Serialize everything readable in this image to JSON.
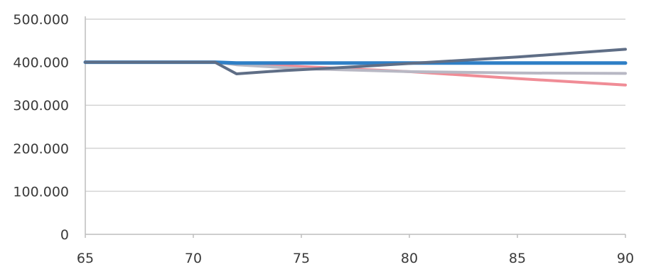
{
  "chart_data": {
    "type": "line",
    "title": "",
    "xlabel": "",
    "ylabel": "",
    "xlim": [
      65,
      90
    ],
    "ylim": [
      0,
      500
    ],
    "x_ticks": [
      65,
      70,
      75,
      80,
      85,
      90
    ],
    "x_tick_labels": [
      "65",
      "70",
      "75",
      "80",
      "85",
      "90"
    ],
    "y_ticks": [
      0,
      100,
      200,
      300,
      400,
      500
    ],
    "y_tick_labels": [
      "0",
      "100.000",
      "200.000",
      "300.000",
      "400.000",
      "500.000"
    ],
    "grid": "horizontal",
    "legend": "none",
    "series": [
      {
        "color": "#f08c96",
        "stroke": 4,
        "points": [
          [
            65,
            400
          ],
          [
            67,
            400
          ],
          [
            71,
            400
          ],
          [
            72,
            398
          ],
          [
            75,
            390
          ],
          [
            80,
            378
          ],
          [
            85,
            362
          ],
          [
            90,
            347
          ]
        ]
      },
      {
        "color": "#b8b8c4",
        "stroke": 4,
        "points": [
          [
            65,
            400
          ],
          [
            67,
            400
          ],
          [
            71,
            400
          ],
          [
            72,
            394
          ],
          [
            75,
            385
          ],
          [
            80,
            378
          ],
          [
            85,
            375
          ],
          [
            90,
            374
          ]
        ]
      },
      {
        "color": "#2f7fc6",
        "stroke": 5,
        "points": [
          [
            65,
            400
          ],
          [
            67,
            400
          ],
          [
            71,
            400
          ],
          [
            72,
            398
          ],
          [
            75,
            398
          ],
          [
            80,
            398
          ],
          [
            85,
            398
          ],
          [
            90,
            398
          ]
        ]
      },
      {
        "color": "#5f6e86",
        "stroke": 4,
        "points": [
          [
            65,
            400
          ],
          [
            67,
            400
          ],
          [
            71,
            400
          ],
          [
            72,
            373
          ],
          [
            74,
            380
          ],
          [
            77,
            388
          ],
          [
            80,
            397
          ],
          [
            85,
            412
          ],
          [
            90,
            430
          ]
        ]
      }
    ]
  }
}
